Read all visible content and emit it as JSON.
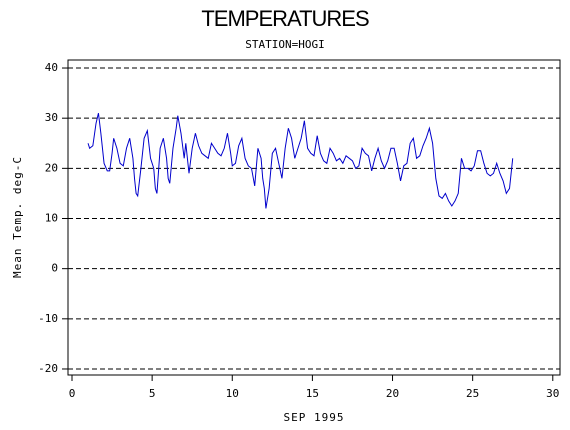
{
  "chart_data": {
    "type": "line",
    "title": "TEMPERATURES",
    "subtitle": "STATION=HOGI",
    "xlabel": "SEP 1995",
    "ylabel": "Mean Temp. deg-C",
    "xlim": [
      -0.25,
      30.45
    ],
    "ylim": [
      -21.2,
      41.6
    ],
    "xticks": [
      0,
      5,
      10,
      15,
      20,
      25,
      30
    ],
    "yticks": [
      -20,
      -10,
      0,
      10,
      20,
      30,
      40
    ],
    "grid": true,
    "series": [
      {
        "color": "#0000cc",
        "x": [
          1.0,
          1.1,
          1.3,
          1.5,
          1.65,
          1.8,
          2.0,
          2.2,
          2.35,
          2.5,
          2.6,
          2.8,
          3.0,
          3.2,
          3.4,
          3.6,
          3.8,
          3.9,
          4.0,
          4.1,
          4.3,
          4.5,
          4.7,
          4.9,
          5.1,
          5.2,
          5.3,
          5.5,
          5.7,
          5.9,
          6.0,
          6.1,
          6.3,
          6.5,
          6.6,
          6.8,
          7.0,
          7.1,
          7.3,
          7.5,
          7.7,
          7.9,
          8.1,
          8.3,
          8.5,
          8.7,
          8.9,
          9.1,
          9.3,
          9.5,
          9.7,
          9.9,
          10.0,
          10.2,
          10.4,
          10.6,
          10.8,
          11.0,
          11.2,
          11.4,
          11.6,
          11.8,
          11.9,
          12.0,
          12.1,
          12.3,
          12.5,
          12.7,
          12.9,
          13.1,
          13.3,
          13.5,
          13.7,
          13.9,
          14.1,
          14.3,
          14.5,
          14.7,
          14.9,
          15.1,
          15.3,
          15.5,
          15.7,
          15.9,
          16.1,
          16.3,
          16.5,
          16.7,
          16.9,
          17.1,
          17.3,
          17.5,
          17.7,
          17.9,
          18.1,
          18.3,
          18.5,
          18.7,
          18.9,
          19.1,
          19.3,
          19.5,
          19.7,
          19.9,
          20.1,
          20.3,
          20.5,
          20.7,
          20.9,
          21.1,
          21.3,
          21.5,
          21.7,
          21.9,
          22.1,
          22.3,
          22.5,
          22.7,
          22.9,
          23.1,
          23.3,
          23.5,
          23.7,
          23.9,
          24.1,
          24.3,
          24.5,
          24.7,
          24.9,
          25.1,
          25.3,
          25.5,
          25.7,
          25.9,
          26.1,
          26.3,
          26.5,
          26.7,
          26.9,
          27.1,
          27.3,
          27.5
        ],
        "values": [
          25,
          24,
          24.5,
          29,
          31,
          27,
          21,
          19.5,
          19.5,
          23,
          26,
          24,
          21,
          20.5,
          24,
          26,
          22,
          18,
          15,
          14.5,
          20,
          26,
          27.5,
          22,
          20,
          16,
          15,
          24,
          26,
          22,
          18,
          17,
          24,
          28,
          30.5,
          27,
          22,
          25,
          19,
          24,
          27,
          24.5,
          23,
          22.5,
          22,
          25,
          24,
          23,
          22.5,
          24,
          27,
          23,
          20.5,
          21,
          24.5,
          26,
          22,
          20.5,
          20,
          16.5,
          24,
          22,
          18,
          16,
          12,
          16,
          23,
          24,
          21,
          18,
          24,
          28,
          26,
          22,
          24,
          26,
          29.5,
          24,
          23,
          22.5,
          26.5,
          23,
          21.5,
          21,
          24,
          23,
          21.5,
          22,
          21,
          22.5,
          22,
          21.5,
          20,
          20.5,
          24,
          23,
          22.5,
          19.5,
          22,
          24,
          21.5,
          20,
          21.5,
          24,
          24,
          21,
          17.5,
          20.5,
          21,
          25,
          26,
          22,
          22.5,
          24.5,
          26,
          28,
          25,
          18,
          14.5,
          14,
          15,
          13.5,
          12.5,
          13.5,
          15,
          22,
          20,
          20,
          19.5,
          20.5,
          23.5,
          23.5,
          21,
          19,
          18.5,
          19,
          21,
          19,
          17.5,
          15,
          16,
          22
        ]
      }
    ]
  }
}
